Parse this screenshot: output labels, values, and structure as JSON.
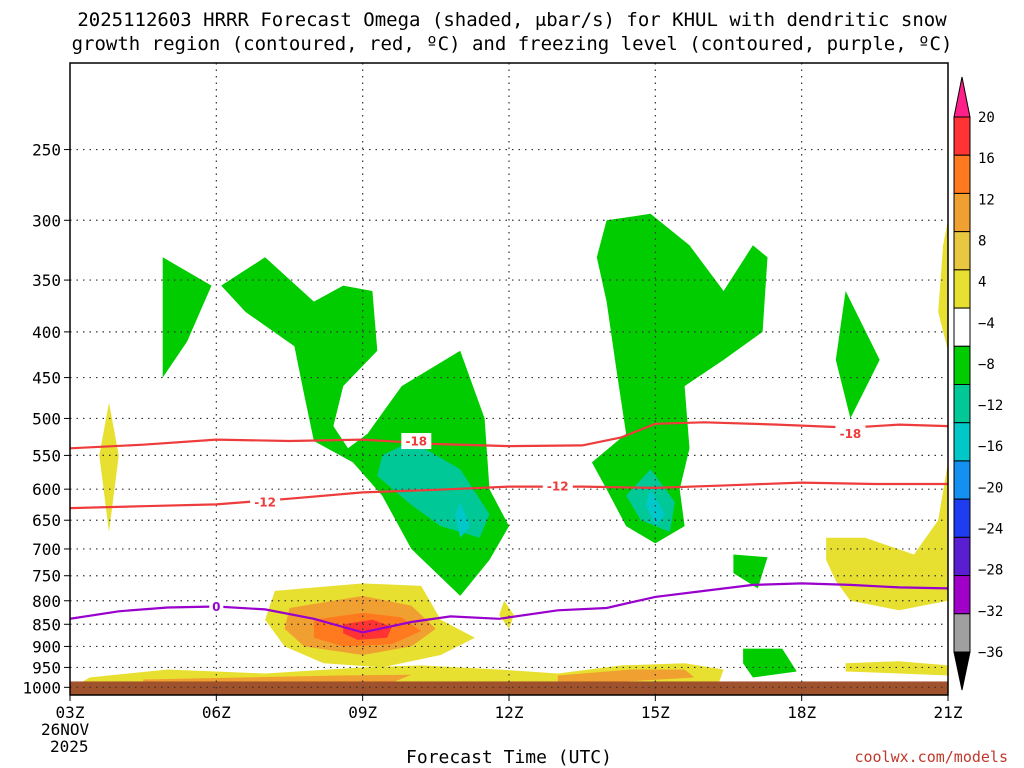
{
  "chart_data": {
    "type": "heatmap",
    "title_line1": "2025112603 HRRR Forecast Omega (shaded, μbar/s) for KHUL with dendritic snow",
    "title_line2": "growth region (contoured, red, ºC) and freezing level (contoured, purple, ºC)",
    "xlabel": "Forecast Time (UTC)",
    "ylabel": "",
    "x_ticks": [
      "03Z",
      "06Z",
      "09Z",
      "12Z",
      "15Z",
      "18Z",
      "21Z"
    ],
    "x_hours": [
      3,
      6,
      9,
      12,
      15,
      18,
      21
    ],
    "x_date_line1": "26NOV",
    "x_date_line2": "2025",
    "y_ticks": [
      250,
      300,
      350,
      400,
      450,
      500,
      550,
      600,
      650,
      700,
      750,
      800,
      850,
      900,
      950,
      1000
    ],
    "y_range_hpa": [
      200,
      1020
    ],
    "y_scale": "log-pressure (inverted)",
    "grid": true,
    "colorbar": {
      "ticks": [
        20,
        16,
        12,
        8,
        4,
        -4,
        -8,
        -12,
        -16,
        -20,
        -24,
        -28,
        -32,
        -36
      ],
      "colors": [
        "#ff1f88",
        "#ff3333",
        "#ff7a1f",
        "#f0a030",
        "#e8c840",
        "#e8e030",
        "#ffffff",
        "#00cc00",
        "#00c896",
        "#00c8c8",
        "#1490f0",
        "#1e3cf0",
        "#5a1ed2",
        "#a000c8",
        "#a0a0a0",
        "#000000"
      ]
    },
    "omega_regions": [
      {
        "level": -8,
        "color": "#00cc00",
        "points": [
          [
            4.9,
            330
          ],
          [
            5.9,
            355
          ],
          [
            5.4,
            410
          ],
          [
            4.9,
            450
          ]
        ]
      },
      {
        "level": -8,
        "color": "#00cc00",
        "points": [
          [
            6.1,
            355
          ],
          [
            7.0,
            330
          ],
          [
            8.0,
            370
          ],
          [
            8.6,
            355
          ],
          [
            9.2,
            360
          ],
          [
            9.3,
            420
          ],
          [
            8.6,
            460
          ],
          [
            8.4,
            510
          ],
          [
            8.7,
            540
          ],
          [
            9.1,
            520
          ],
          [
            9.8,
            460
          ],
          [
            11.0,
            420
          ],
          [
            11.5,
            500
          ],
          [
            11.6,
            600
          ],
          [
            12.0,
            660
          ],
          [
            11.6,
            720
          ],
          [
            11.0,
            790
          ],
          [
            10.0,
            700
          ],
          [
            9.4,
            610
          ],
          [
            8.8,
            560
          ],
          [
            8.0,
            530
          ],
          [
            7.8,
            470
          ],
          [
            7.6,
            415
          ],
          [
            6.6,
            380
          ]
        ]
      },
      {
        "level": -8,
        "color": "#00cc00",
        "points": [
          [
            14.0,
            300
          ],
          [
            14.9,
            295
          ],
          [
            15.7,
            320
          ],
          [
            16.4,
            360
          ],
          [
            17.0,
            320
          ],
          [
            17.3,
            330
          ],
          [
            17.2,
            400
          ],
          [
            16.4,
            430
          ],
          [
            15.6,
            460
          ],
          [
            15.7,
            540
          ],
          [
            15.5,
            600
          ],
          [
            15.6,
            660
          ],
          [
            15.0,
            690
          ],
          [
            14.4,
            660
          ],
          [
            14.0,
            600
          ],
          [
            13.7,
            560
          ],
          [
            14.4,
            520
          ],
          [
            14.2,
            440
          ],
          [
            14.0,
            370
          ],
          [
            13.8,
            330
          ]
        ]
      },
      {
        "level": -8,
        "color": "#00cc00",
        "points": [
          [
            18.9,
            360
          ],
          [
            19.6,
            430
          ],
          [
            19.0,
            500
          ],
          [
            18.7,
            430
          ]
        ]
      },
      {
        "level": -8,
        "color": "#00cc00",
        "points": [
          [
            16.6,
            710
          ],
          [
            17.3,
            715
          ],
          [
            17.1,
            775
          ],
          [
            16.6,
            745
          ]
        ]
      },
      {
        "level": -8,
        "color": "#00cc00",
        "points": [
          [
            16.8,
            905
          ],
          [
            17.6,
            905
          ],
          [
            17.9,
            960
          ],
          [
            17.0,
            975
          ],
          [
            16.8,
            940
          ]
        ]
      },
      {
        "level": -12,
        "color": "#00c896",
        "points": [
          [
            10.0,
            530
          ],
          [
            11.0,
            570
          ],
          [
            11.6,
            640
          ],
          [
            11.4,
            680
          ],
          [
            10.6,
            660
          ],
          [
            10.0,
            625
          ],
          [
            9.3,
            580
          ],
          [
            9.4,
            550
          ]
        ]
      },
      {
        "level": -12,
        "color": "#00c896",
        "points": [
          [
            14.9,
            570
          ],
          [
            15.4,
            620
          ],
          [
            15.3,
            670
          ],
          [
            14.7,
            650
          ],
          [
            14.4,
            610
          ]
        ]
      },
      {
        "level": -16,
        "color": "#00c8c8",
        "points": [
          [
            11.0,
            620
          ],
          [
            11.2,
            660
          ],
          [
            11.0,
            680
          ],
          [
            10.9,
            640
          ]
        ]
      },
      {
        "level": -16,
        "color": "#00c8c8",
        "points": [
          [
            14.9,
            600
          ],
          [
            15.2,
            640
          ],
          [
            15.0,
            660
          ],
          [
            14.8,
            625
          ]
        ]
      },
      {
        "level": 4,
        "color": "#e8e030",
        "points": [
          [
            3.8,
            480
          ],
          [
            4.0,
            550
          ],
          [
            3.8,
            670
          ],
          [
            3.6,
            550
          ]
        ]
      },
      {
        "level": 4,
        "color": "#e8e030",
        "points": [
          [
            7.2,
            780
          ],
          [
            9.0,
            765
          ],
          [
            10.2,
            770
          ],
          [
            10.6,
            840
          ],
          [
            11.3,
            880
          ],
          [
            10.6,
            920
          ],
          [
            9.4,
            950
          ],
          [
            8.2,
            940
          ],
          [
            7.4,
            900
          ],
          [
            7.0,
            840
          ]
        ]
      },
      {
        "level": 4,
        "color": "#e8e030",
        "points": [
          [
            3.4,
            975
          ],
          [
            5.0,
            955
          ],
          [
            7.0,
            965
          ],
          [
            9.0,
            950
          ],
          [
            10.2,
            945
          ],
          [
            11.8,
            955
          ],
          [
            13.0,
            965
          ],
          [
            14.3,
            945
          ],
          [
            15.6,
            940
          ],
          [
            16.4,
            955
          ],
          [
            16.3,
            990
          ],
          [
            14.0,
            990
          ],
          [
            11.8,
            990
          ],
          [
            9.5,
            990
          ],
          [
            7.0,
            990
          ],
          [
            5.0,
            990
          ],
          [
            3.2,
            990
          ]
        ]
      },
      {
        "level": 4,
        "color": "#e8e030",
        "points": [
          [
            11.9,
            800
          ],
          [
            12.1,
            830
          ],
          [
            12.0,
            860
          ],
          [
            11.8,
            830
          ]
        ]
      },
      {
        "level": 4,
        "color": "#e8e030",
        "points": [
          [
            18.5,
            680
          ],
          [
            19.3,
            680
          ],
          [
            20.3,
            710
          ],
          [
            20.8,
            650
          ],
          [
            21.0,
            560
          ],
          [
            21.0,
            800
          ],
          [
            20.0,
            820
          ],
          [
            19.0,
            800
          ],
          [
            18.7,
            760
          ],
          [
            18.5,
            720
          ]
        ]
      },
      {
        "level": 4,
        "color": "#e8e030",
        "points": [
          [
            20.9,
            320
          ],
          [
            21.0,
            300
          ],
          [
            21.0,
            420
          ],
          [
            20.8,
            380
          ]
        ]
      },
      {
        "level": 4,
        "color": "#e8e030",
        "points": [
          [
            18.9,
            940
          ],
          [
            20.0,
            935
          ],
          [
            21.0,
            945
          ],
          [
            21.0,
            970
          ],
          [
            20.0,
            965
          ],
          [
            18.9,
            960
          ]
        ]
      },
      {
        "level": 8,
        "color": "#f0a030",
        "points": [
          [
            7.5,
            815
          ],
          [
            9.0,
            790
          ],
          [
            10.0,
            810
          ],
          [
            10.5,
            860
          ],
          [
            10.0,
            900
          ],
          [
            9.0,
            920
          ],
          [
            7.8,
            900
          ],
          [
            7.4,
            860
          ]
        ]
      },
      {
        "level": 8,
        "color": "#f0a030",
        "points": [
          [
            4.5,
            980
          ],
          [
            6.5,
            975
          ],
          [
            8.5,
            970
          ],
          [
            10.0,
            968
          ],
          [
            9.6,
            988
          ],
          [
            7.0,
            990
          ],
          [
            4.5,
            990
          ]
        ]
      },
      {
        "level": 8,
        "color": "#f0a030",
        "points": [
          [
            13.0,
            970
          ],
          [
            14.5,
            955
          ],
          [
            15.6,
            955
          ],
          [
            15.8,
            975
          ],
          [
            14.4,
            985
          ],
          [
            13.0,
            985
          ]
        ]
      },
      {
        "level": 12,
        "color": "#ff7a1f",
        "points": [
          [
            8.0,
            840
          ],
          [
            9.0,
            825
          ],
          [
            9.8,
            835
          ],
          [
            10.2,
            865
          ],
          [
            9.6,
            895
          ],
          [
            8.6,
            900
          ],
          [
            8.0,
            880
          ]
        ]
      },
      {
        "level": 16,
        "color": "#ff3333",
        "points": [
          [
            8.6,
            850
          ],
          [
            9.2,
            840
          ],
          [
            9.6,
            855
          ],
          [
            9.5,
            880
          ],
          [
            8.9,
            885
          ],
          [
            8.6,
            870
          ]
        ]
      }
    ],
    "contours": [
      {
        "name": "-18",
        "color": "#ee3c3c",
        "label": "-18",
        "label_positions": [
          [
            10.1,
            530
          ],
          [
            19.0,
            520
          ]
        ],
        "points": [
          [
            3.0,
            540
          ],
          [
            4.5,
            535
          ],
          [
            6.0,
            528
          ],
          [
            7.5,
            530
          ],
          [
            9.0,
            528
          ],
          [
            10.5,
            534
          ],
          [
            12.0,
            537
          ],
          [
            13.5,
            536
          ],
          [
            14.3,
            525
          ],
          [
            15.0,
            507
          ],
          [
            16.0,
            505
          ],
          [
            17.5,
            508
          ],
          [
            19.0,
            512
          ],
          [
            20.0,
            508
          ],
          [
            21.0,
            510
          ]
        ]
      },
      {
        "name": "-12",
        "color": "#ee3c3c",
        "label": "-12",
        "label_positions": [
          [
            7.0,
            620
          ],
          [
            13.0,
            595
          ]
        ],
        "points": [
          [
            3.0,
            630
          ],
          [
            4.5,
            627
          ],
          [
            6.0,
            624
          ],
          [
            7.5,
            615
          ],
          [
            9.0,
            605
          ],
          [
            10.5,
            601
          ],
          [
            12.0,
            596
          ],
          [
            13.5,
            596
          ],
          [
            15.0,
            598
          ],
          [
            16.5,
            594
          ],
          [
            18.0,
            590
          ],
          [
            19.5,
            592
          ],
          [
            21.0,
            592
          ]
        ]
      },
      {
        "name": "0",
        "color": "#9900cc",
        "label": "0",
        "label_positions": [
          [
            6.0,
            812
          ]
        ],
        "points": [
          [
            3.0,
            838
          ],
          [
            4.0,
            822
          ],
          [
            5.0,
            814
          ],
          [
            6.0,
            812
          ],
          [
            7.0,
            818
          ],
          [
            8.0,
            838
          ],
          [
            9.0,
            868
          ],
          [
            10.0,
            845
          ],
          [
            10.8,
            833
          ],
          [
            11.8,
            838
          ],
          [
            13.0,
            820
          ],
          [
            14.0,
            815
          ],
          [
            15.0,
            792
          ],
          [
            16.0,
            780
          ],
          [
            17.0,
            768
          ],
          [
            18.0,
            765
          ],
          [
            19.0,
            768
          ],
          [
            20.0,
            773
          ],
          [
            21.0,
            775
          ]
        ]
      }
    ],
    "terrain_top_hpa": 985,
    "terrain_color": "#a0522d"
  },
  "watermark": "coolwx.com/models"
}
